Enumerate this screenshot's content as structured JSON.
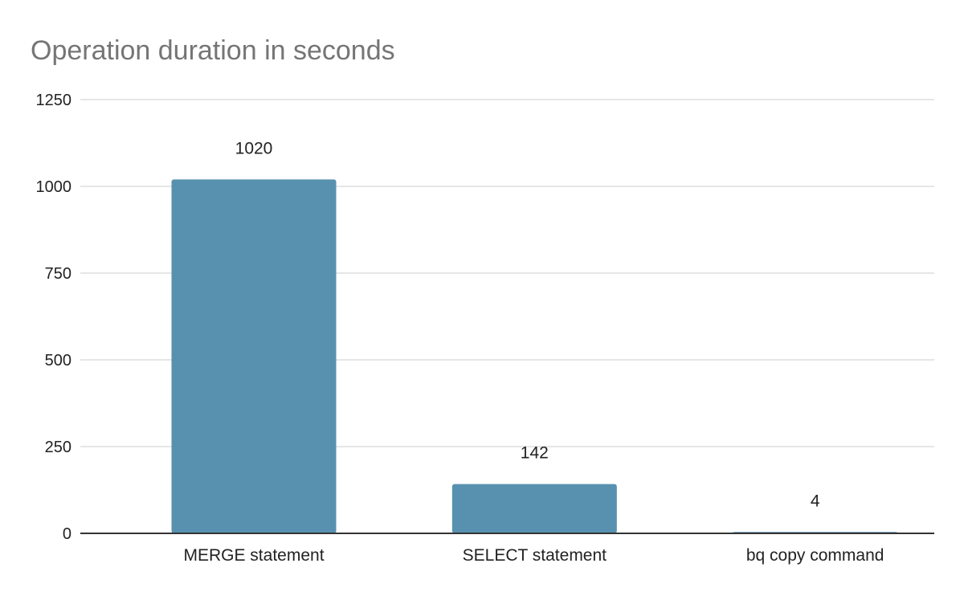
{
  "chart_data": {
    "type": "bar",
    "title": "Operation duration in seconds",
    "categories": [
      "MERGE statement",
      "SELECT statement",
      "bq copy command"
    ],
    "values": [
      1020,
      142,
      4
    ],
    "data_labels": [
      "1020",
      "142",
      "4"
    ],
    "xlabel": "",
    "ylabel": "",
    "ylim": [
      0,
      1250
    ],
    "yticks": [
      0,
      250,
      500,
      750,
      1000,
      1250
    ],
    "ytick_labels": [
      "0",
      "250",
      "500",
      "750",
      "1000",
      "1250"
    ],
    "grid": true,
    "legend": "none",
    "colors": {
      "bar": "#5891AF",
      "gridline": "#CCCCCC",
      "axis": "#333333",
      "title": "#757575"
    }
  }
}
